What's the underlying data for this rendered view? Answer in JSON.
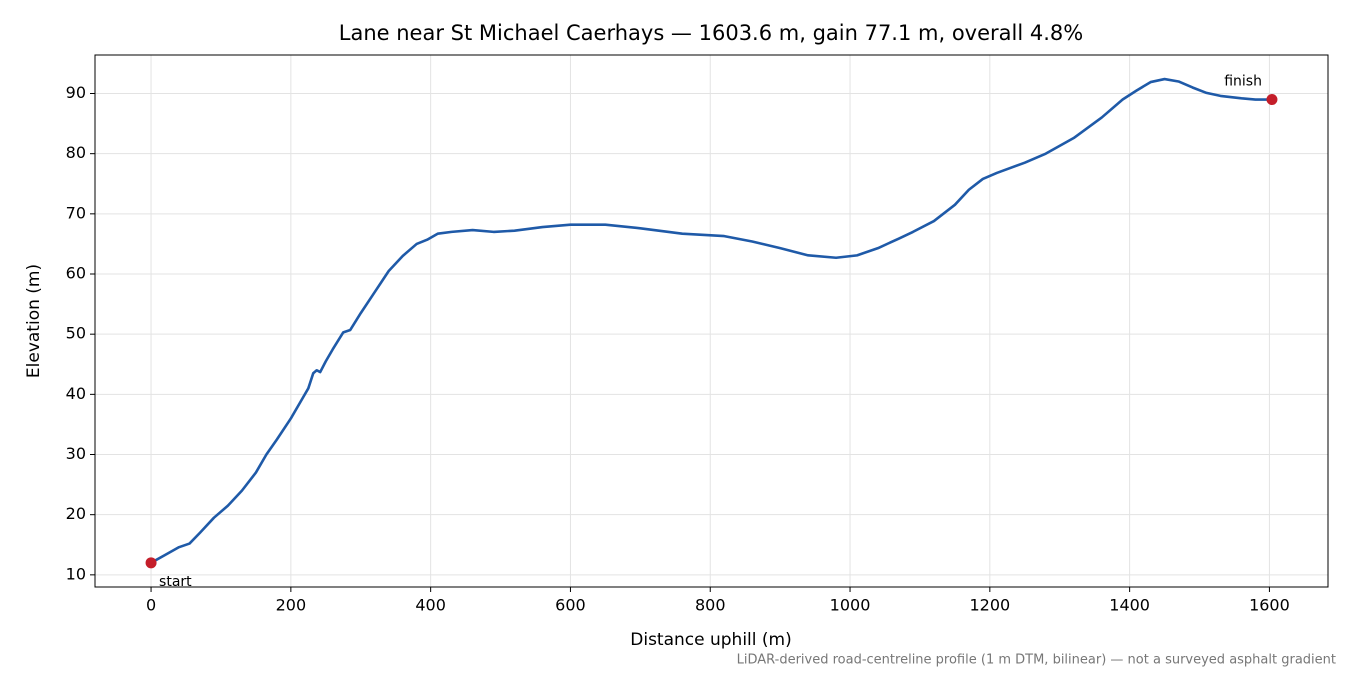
{
  "chart_data": {
    "type": "line",
    "title": "Lane near St Michael Caerhays — 1603.6 m, gain 77.1 m, overall 4.8%",
    "xlabel": "Distance uphill (m)",
    "ylabel": "Elevation (m)",
    "footnote": "LiDAR-derived road-centreline profile (1 m DTM, bilinear) — not a surveyed asphalt gradient",
    "x": [
      0,
      20,
      40,
      55,
      70,
      90,
      110,
      130,
      150,
      165,
      180,
      200,
      215,
      225,
      232,
      237,
      242,
      250,
      260,
      275,
      285,
      300,
      320,
      340,
      360,
      380,
      395,
      410,
      430,
      460,
      490,
      520,
      560,
      600,
      650,
      700,
      760,
      820,
      860,
      900,
      940,
      980,
      1010,
      1040,
      1070,
      1090,
      1120,
      1150,
      1170,
      1190,
      1210,
      1250,
      1280,
      1320,
      1360,
      1390,
      1410,
      1430,
      1450,
      1470,
      1490,
      1510,
      1530,
      1560,
      1580,
      1603.6
    ],
    "series": [
      {
        "name": "Elevation",
        "color": "#1f5aa8",
        "values": [
          12,
          13.3,
          14.6,
          15.2,
          17,
          19.5,
          21.5,
          24,
          27,
          30,
          32.5,
          36,
          39,
          41,
          43.5,
          44,
          43.7,
          45.5,
          47.5,
          50.3,
          50.7,
          53.5,
          57,
          60.5,
          63,
          65,
          65.7,
          66.7,
          67,
          67.3,
          67,
          67.2,
          67.8,
          68.2,
          68.2,
          67.6,
          66.7,
          66.3,
          65.4,
          64.3,
          63.1,
          62.7,
          63.1,
          64.3,
          65.9,
          67,
          68.8,
          71.5,
          74,
          75.8,
          76.8,
          78.5,
          80,
          82.6,
          86,
          89,
          90.5,
          91.9,
          92.4,
          92,
          91,
          90.1,
          89.6,
          89.2,
          89,
          89
        ]
      }
    ],
    "points": [
      {
        "label": "start",
        "x": 0,
        "y": 12
      },
      {
        "label": "finish",
        "x": 1603.6,
        "y": 89
      }
    ],
    "point_color": "#c41e2a",
    "xlim": [
      -80.2,
      1683.8
    ],
    "ylim": [
      7.98,
      96.4
    ],
    "xticks": [
      0,
      200,
      400,
      600,
      800,
      1000,
      1200,
      1400,
      1600
    ],
    "yticks": [
      10,
      20,
      30,
      40,
      50,
      60,
      70,
      80,
      90
    ],
    "grid": true
  }
}
